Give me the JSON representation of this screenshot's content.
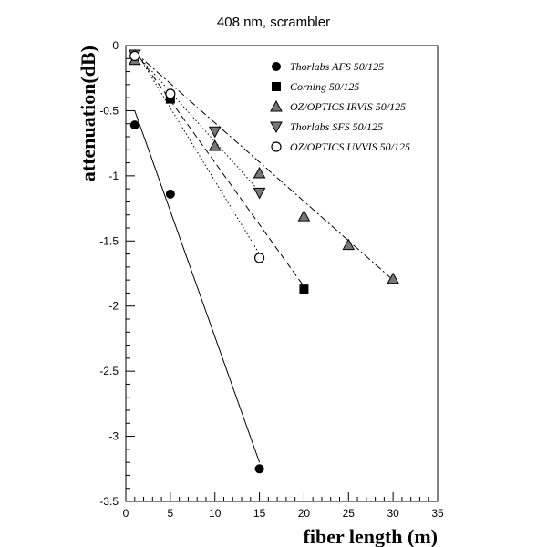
{
  "chart_data": {
    "type": "scatter",
    "title": "408 nm, scrambler",
    "xlabel": "fiber length (m)",
    "ylabel": "attenuation(dB)",
    "xlim": [
      0,
      35
    ],
    "ylim": [
      -3.5,
      0
    ],
    "xticks": [
      "0",
      "5",
      "10",
      "15",
      "20",
      "25",
      "30",
      "35"
    ],
    "yticks": [
      "0",
      "-0.5",
      "-1",
      "-1.5",
      "-2",
      "-2.5",
      "-3",
      "-3.5"
    ],
    "grid": false,
    "legend_position": "top-right",
    "series": [
      {
        "name": "Thorlabs AFS 50/125",
        "marker": "circle-filled",
        "line": "solid",
        "x": [
          1,
          5,
          15
        ],
        "y": [
          -0.61,
          -1.14,
          -3.25
        ],
        "fit": [
          [
            1,
            -0.5
          ],
          [
            15,
            -3.2
          ]
        ]
      },
      {
        "name": "Corning 50/125",
        "marker": "square-filled",
        "line": "dashed",
        "x": [
          1,
          5,
          20
        ],
        "y": [
          -0.07,
          -0.41,
          -1.87
        ],
        "fit": [
          [
            1,
            -0.04
          ],
          [
            20,
            -1.85
          ]
        ]
      },
      {
        "name": "OZ/OPTICS IRVIS 50/125",
        "marker": "triangle-up",
        "line": "dashdot",
        "x": [
          1,
          10,
          15,
          20,
          25,
          30
        ],
        "y": [
          -0.11,
          -0.77,
          -0.98,
          -1.31,
          -1.53,
          -1.79
        ],
        "fit": [
          [
            1,
            -0.05
          ],
          [
            30,
            -1.8
          ]
        ]
      },
      {
        "name": "Thorlabs SFS 50/125",
        "marker": "triangle-down",
        "line": "dotted",
        "x": [
          1,
          10,
          15
        ],
        "y": [
          -0.07,
          -0.66,
          -1.13
        ],
        "fit": [
          [
            1,
            -0.05
          ],
          [
            15,
            -1.12
          ]
        ]
      },
      {
        "name": "OZ/OPTICS UVVIS 50/125",
        "marker": "circle-open",
        "line": "dotted",
        "x": [
          1,
          5,
          15
        ],
        "y": [
          -0.08,
          -0.37,
          -1.63
        ],
        "fit": [
          [
            1,
            -0.03
          ],
          [
            15,
            -1.6
          ]
        ]
      }
    ]
  }
}
